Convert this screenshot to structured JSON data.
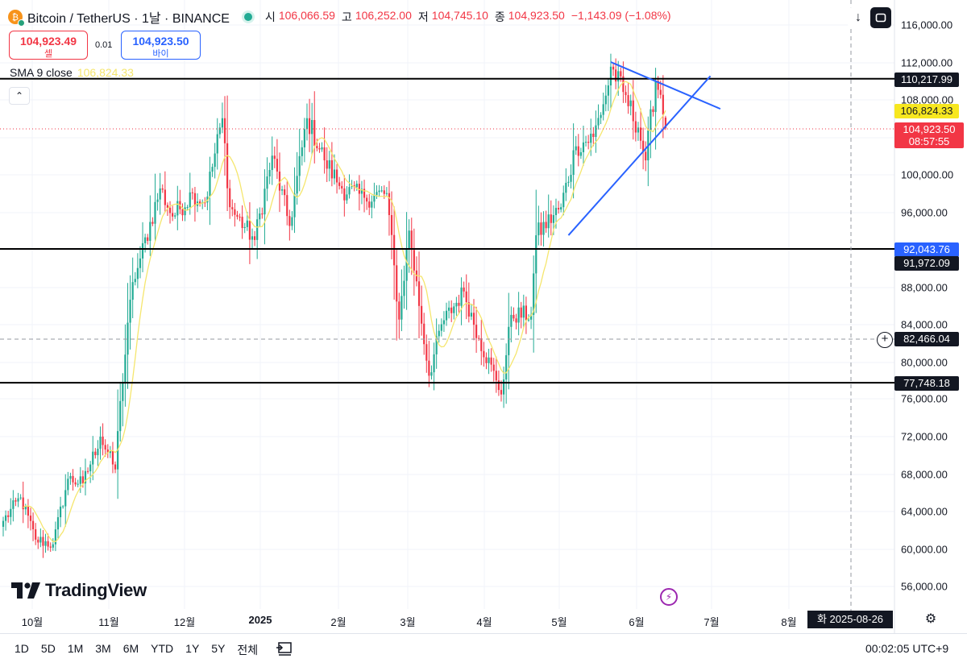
{
  "header": {
    "symbol_title": "Bitcoin / TetherUS · 1날 · BINANCE",
    "ohlc": [
      {
        "key": "시",
        "value": "106,066.59"
      },
      {
        "key": "고",
        "value": "106,252.00"
      },
      {
        "key": "저",
        "value": "104,745.10"
      },
      {
        "key": "종",
        "value": "104,923.50"
      }
    ],
    "change": "−1,143.09 (−1.08%)"
  },
  "trade": {
    "sell_price": "104,923.49",
    "sell_label": "셀",
    "spread": "0.01",
    "buy_price": "104,923.50",
    "buy_label": "바이"
  },
  "indicator": {
    "label": "SMA 9 close",
    "value": "106,824.33"
  },
  "price_axis": {
    "ticks": [
      "116,000.00",
      "112,000.00",
      "108,000.00",
      "100,000.00",
      "96,000.00",
      "88,000.00",
      "84,000.00",
      "80,000.00",
      "76,000.00",
      "72,000.00",
      "68,000.00",
      "64,000.00",
      "60,000.00",
      "56,000.00"
    ],
    "labels": {
      "resistance": "110,217.99",
      "sma": "106,824.33",
      "last_price": "104,923.50",
      "countdown": "08:57:55",
      "blue_line": "92,043.76",
      "support_mid": "91,972.09",
      "crosshair": "82,466.04",
      "support_low": "77,748.18"
    }
  },
  "time_axis": {
    "ticks": [
      "10월",
      "11월",
      "12월",
      "2025",
      "2월",
      "3월",
      "4월",
      "5월",
      "6월",
      "7월",
      "8월"
    ],
    "crosshair_date": "화 2025-08-26"
  },
  "footer": {
    "ranges": [
      "1D",
      "5D",
      "1M",
      "3M",
      "6M",
      "YTD",
      "1Y",
      "5Y",
      "전체"
    ],
    "clock": "00:02:05 UTC+9"
  },
  "branding": {
    "logo_text": "TradingView"
  },
  "colors": {
    "up": "#22ab94",
    "down": "#f23645",
    "sma": "#f5e66e",
    "trendline": "#2962ff",
    "level": "#000000"
  },
  "icons": [
    "bitcoin-icon",
    "live-status-icon",
    "scroll-down-icon",
    "fullscreen-icon",
    "collapse-chevron-icon",
    "add-alert-icon",
    "settings-gear-icon",
    "compare-icon",
    "tradingview-logo-icon",
    "lightning-icon"
  ],
  "chart_data": {
    "type": "candlestick",
    "interval": "1D",
    "x_range": [
      "2024-09-20",
      "2025-06-13"
    ],
    "y_range": [
      54000,
      118000
    ],
    "anchors": [
      {
        "date": "2024-09-20",
        "close": 63000
      },
      {
        "date": "2024-09-27",
        "close": 65500
      },
      {
        "date": "2024-10-03",
        "close": 61000
      },
      {
        "date": "2024-10-10",
        "close": 60500
      },
      {
        "date": "2024-10-16",
        "close": 67500
      },
      {
        "date": "2024-10-22",
        "close": 67000
      },
      {
        "date": "2024-10-29",
        "close": 72000
      },
      {
        "date": "2024-11-04",
        "close": 68500
      },
      {
        "date": "2024-11-06",
        "close": 75800
      },
      {
        "date": "2024-11-11",
        "close": 88500
      },
      {
        "date": "2024-11-13",
        "close": 90000
      },
      {
        "date": "2024-11-22",
        "close": 98500
      },
      {
        "date": "2024-11-27",
        "close": 95500
      },
      {
        "date": "2024-12-05",
        "close": 98000
      },
      {
        "date": "2024-12-10",
        "close": 97000
      },
      {
        "date": "2024-12-17",
        "close": 106000
      },
      {
        "date": "2024-12-20",
        "close": 96500
      },
      {
        "date": "2024-12-30",
        "close": 93000
      },
      {
        "date": "2025-01-06",
        "close": 102000
      },
      {
        "date": "2025-01-13",
        "close": 94500
      },
      {
        "date": "2025-01-20",
        "close": 106000
      },
      {
        "date": "2025-01-27",
        "close": 101500
      },
      {
        "date": "2025-02-03",
        "close": 98500
      },
      {
        "date": "2025-02-12",
        "close": 97500
      },
      {
        "date": "2025-02-21",
        "close": 98000
      },
      {
        "date": "2025-02-26",
        "close": 84500
      },
      {
        "date": "2025-03-02",
        "close": 94000
      },
      {
        "date": "2025-03-10",
        "close": 78500
      },
      {
        "date": "2025-03-15",
        "close": 84000
      },
      {
        "date": "2025-03-24",
        "close": 87500
      },
      {
        "date": "2025-03-30",
        "close": 82500
      },
      {
        "date": "2025-04-06",
        "close": 78000
      },
      {
        "date": "2025-04-08",
        "close": 76500
      },
      {
        "date": "2025-04-12",
        "close": 85000
      },
      {
        "date": "2025-04-20",
        "close": 85000
      },
      {
        "date": "2025-04-22",
        "close": 93500
      },
      {
        "date": "2025-05-02",
        "close": 96500
      },
      {
        "date": "2025-05-08",
        "close": 103000
      },
      {
        "date": "2025-05-15",
        "close": 104000
      },
      {
        "date": "2025-05-21",
        "close": 109500
      },
      {
        "date": "2025-05-22",
        "close": 111500
      },
      {
        "date": "2025-05-27",
        "close": 108800
      },
      {
        "date": "2025-06-02",
        "close": 105000
      },
      {
        "date": "2025-06-05",
        "close": 101500
      },
      {
        "date": "2025-06-09",
        "close": 110000
      },
      {
        "date": "2025-06-11",
        "close": 108500
      },
      {
        "date": "2025-06-13",
        "close": 104923.5
      }
    ],
    "last_candle": {
      "open": 106066.59,
      "high": 106252.0,
      "low": 104745.1,
      "close": 104923.5
    },
    "horizontal_levels": [
      110217.99,
      92043.76,
      77748.18
    ],
    "trendlines": [
      {
        "name": "descending resistance",
        "from": [
          "2025-05-22",
          112000
        ],
        "to": [
          "2025-07-05",
          107000
        ]
      },
      {
        "name": "ascending support",
        "from": [
          "2025-05-05",
          93500
        ],
        "to": [
          "2025-07-01",
          110500
        ]
      }
    ],
    "sma": {
      "period": 9,
      "last": 106824.33
    },
    "crosshair": {
      "price": 82466.04,
      "date": "2025-08-26"
    }
  }
}
